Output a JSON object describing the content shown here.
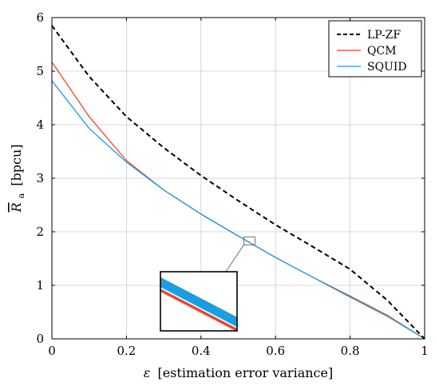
{
  "chart_data": {
    "type": "line",
    "xlabel_symbol": "ε",
    "xlabel": "[estimation error variance]",
    "ylabel_symbol": "R",
    "ylabel_subscript": "a",
    "ylabel_unit": "[bpcu]",
    "xlim": [
      0,
      1
    ],
    "ylim": [
      0,
      6
    ],
    "xticks": [
      0,
      0.2,
      0.4,
      0.6,
      0.8,
      1
    ],
    "xtick_labels": [
      "0",
      "0.2",
      "0.4",
      "0.6",
      "0.8",
      "1"
    ],
    "yticks": [
      0,
      1,
      2,
      3,
      4,
      5,
      6
    ],
    "ytick_labels": [
      "0",
      "1",
      "2",
      "3",
      "4",
      "5",
      "6"
    ],
    "grid": true,
    "legend_position": "top-right",
    "series": [
      {
        "name": "LP-ZF",
        "color": "#000000",
        "dash": "dashed",
        "x": [
          0,
          0.1,
          0.2,
          0.3,
          0.4,
          0.5,
          0.6,
          0.7,
          0.8,
          0.9,
          1.0
        ],
        "y": [
          5.85,
          4.9,
          4.15,
          3.57,
          3.05,
          2.58,
          2.13,
          1.72,
          1.3,
          0.72,
          0.0
        ]
      },
      {
        "name": "QCM",
        "color": "#e8452c",
        "dash": "solid",
        "x": [
          0,
          0.1,
          0.2,
          0.3,
          0.4,
          0.5,
          0.6,
          0.7,
          0.8,
          0.9,
          1.0
        ],
        "y": [
          5.17,
          4.15,
          3.33,
          2.78,
          2.33,
          1.92,
          1.52,
          1.15,
          0.8,
          0.44,
          0.0
        ]
      },
      {
        "name": "SQUID",
        "color": "#1a9ee0",
        "dash": "solid",
        "x": [
          0,
          0.1,
          0.2,
          0.3,
          0.4,
          0.5,
          0.6,
          0.7,
          0.8,
          0.9,
          1.0
        ],
        "y": [
          4.82,
          3.93,
          3.3,
          2.78,
          2.33,
          1.92,
          1.52,
          1.15,
          0.78,
          0.42,
          0.0
        ]
      }
    ],
    "inset": {
      "description_zoom_center": [
        0.53,
        1.83
      ],
      "series_order": [
        "QCM",
        "SQUID"
      ]
    }
  }
}
